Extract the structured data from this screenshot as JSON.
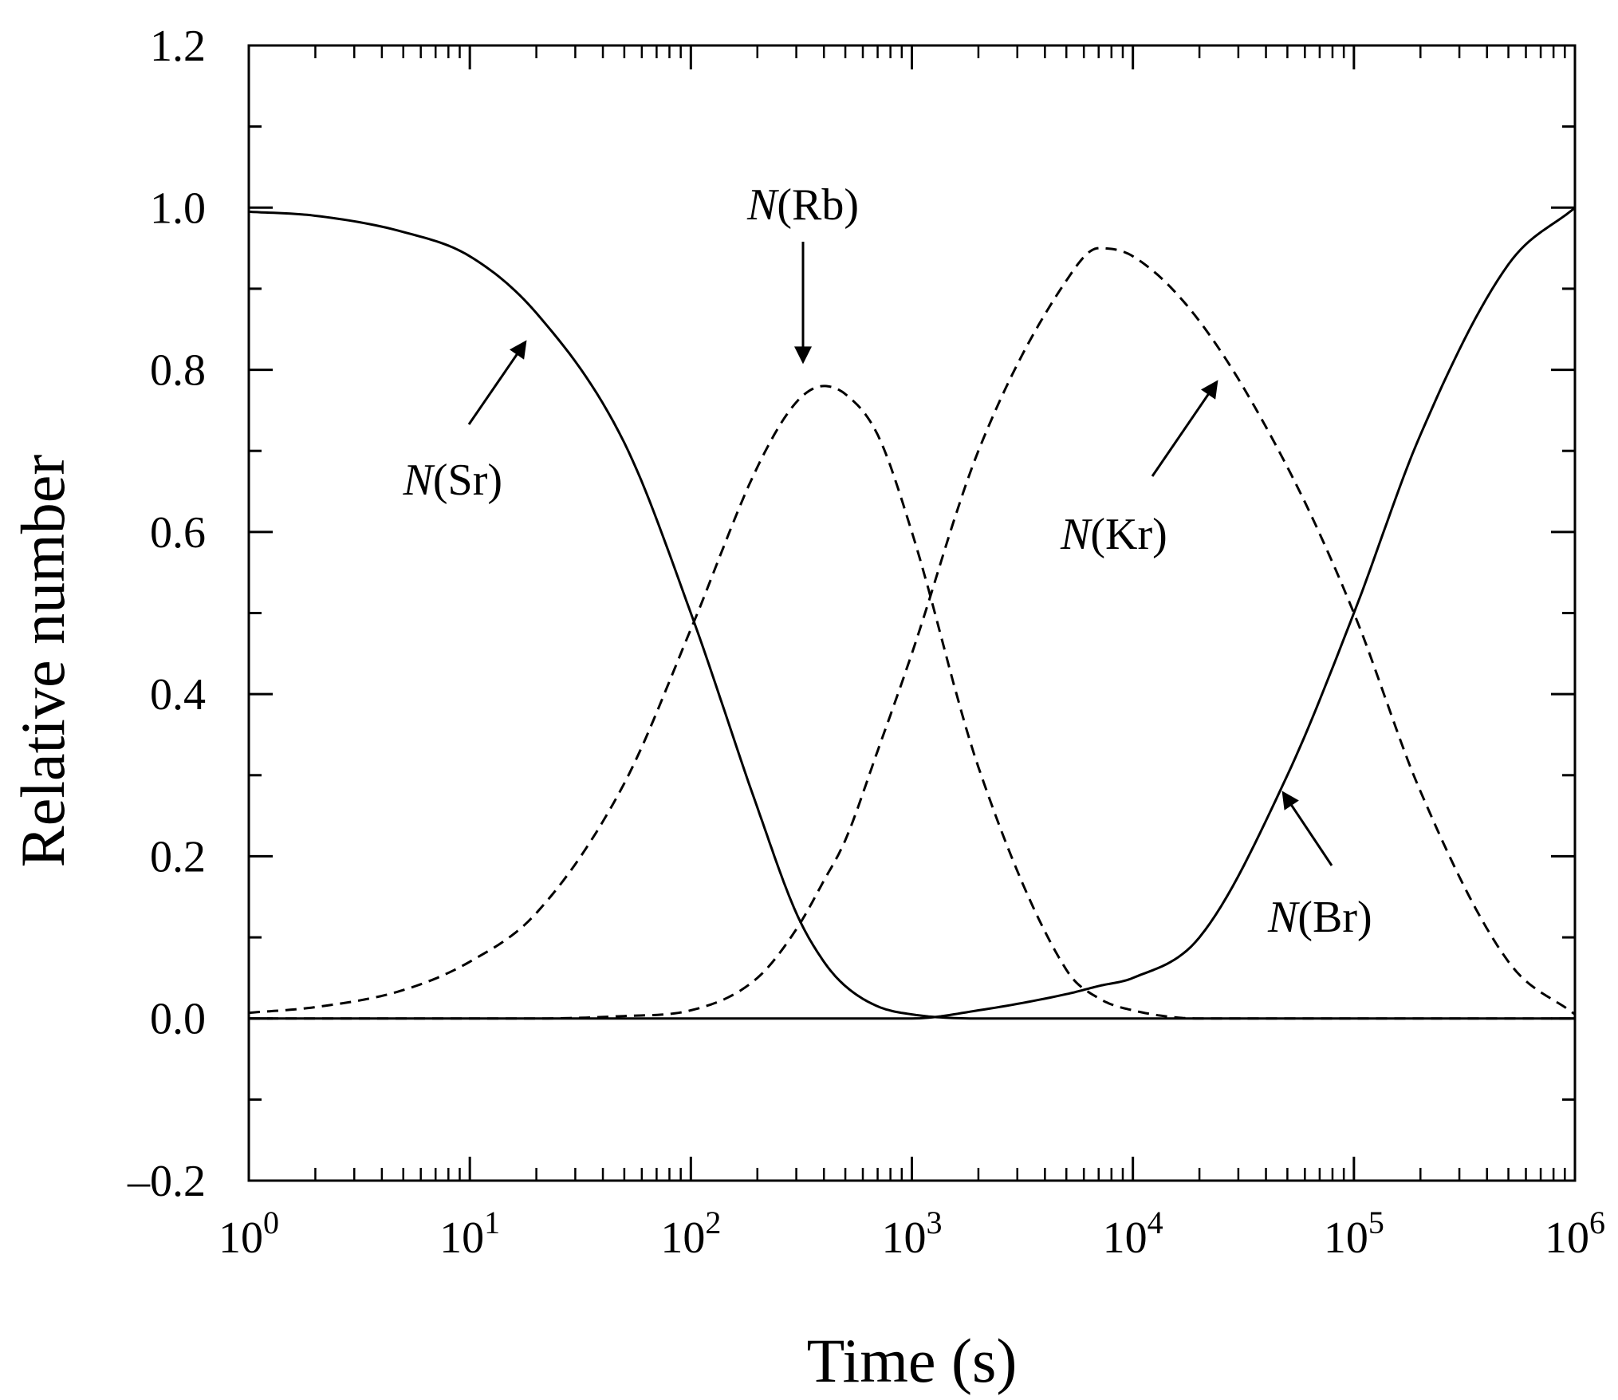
{
  "chart_data": {
    "type": "line",
    "xlabel": "Time (s)",
    "ylabel": "Relative number",
    "xscale": "log",
    "xlim": [
      1,
      1000000
    ],
    "ylim": [
      -0.2,
      1.2
    ],
    "grid": false,
    "legend": "none",
    "x_ticks": [
      {
        "base": "10",
        "exp": "0"
      },
      {
        "base": "10",
        "exp": "1"
      },
      {
        "base": "10",
        "exp": "2"
      },
      {
        "base": "10",
        "exp": "3"
      },
      {
        "base": "10",
        "exp": "4"
      },
      {
        "base": "10",
        "exp": "5"
      },
      {
        "base": "10",
        "exp": "6"
      }
    ],
    "y_ticks": [
      "–0.2",
      "0.0",
      "0.2",
      "0.4",
      "0.6",
      "0.8",
      "1.0",
      "1.2"
    ],
    "x": [
      1,
      2,
      5,
      10,
      20,
      50,
      100,
      200,
      300,
      400,
      500,
      700,
      1000,
      2000,
      5000,
      7000,
      10000,
      20000,
      50000,
      100000,
      200000,
      500000,
      1000000
    ],
    "series": [
      {
        "name": "Sr",
        "style": "solid",
        "values": [
          0.995,
          0.99,
          0.97,
          0.94,
          0.87,
          0.71,
          0.5,
          0.26,
          0.13,
          0.07,
          0.04,
          0.015,
          0.005,
          0.0,
          0.0,
          0.0,
          0.0,
          0.0,
          0.0,
          0.0,
          0.0,
          0.0,
          0.0
        ]
      },
      {
        "name": "Rb",
        "style": "dashed",
        "values": [
          0.007,
          0.014,
          0.035,
          0.07,
          0.13,
          0.29,
          0.48,
          0.68,
          0.76,
          0.78,
          0.77,
          0.72,
          0.6,
          0.31,
          0.06,
          0.025,
          0.01,
          0.0,
          0.0,
          0.0,
          0.0,
          0.0,
          0.0
        ]
      },
      {
        "name": "Kr",
        "style": "dashed",
        "values": [
          0.0,
          0.0,
          0.0,
          0.0,
          0.0,
          0.003,
          0.01,
          0.05,
          0.11,
          0.17,
          0.22,
          0.33,
          0.45,
          0.7,
          0.91,
          0.95,
          0.94,
          0.86,
          0.68,
          0.5,
          0.28,
          0.07,
          0.005
        ]
      },
      {
        "name": "Br",
        "style": "solid",
        "values": [
          0.0,
          0.0,
          0.0,
          0.0,
          0.0,
          0.0,
          0.0,
          0.0,
          0.0,
          0.0,
          0.0,
          0.0,
          0.0,
          0.01,
          0.03,
          0.04,
          0.05,
          0.1,
          0.3,
          0.5,
          0.72,
          0.93,
          1.0
        ]
      }
    ],
    "annotations": [
      {
        "italic": "N",
        "text": "(Sr)",
        "series": "Sr"
      },
      {
        "italic": "N",
        "text": "(Rb)",
        "series": "Rb"
      },
      {
        "italic": "N",
        "text": "(Kr)",
        "series": "Kr"
      },
      {
        "italic": "N",
        "text": "(Br)",
        "series": "Br"
      }
    ]
  }
}
